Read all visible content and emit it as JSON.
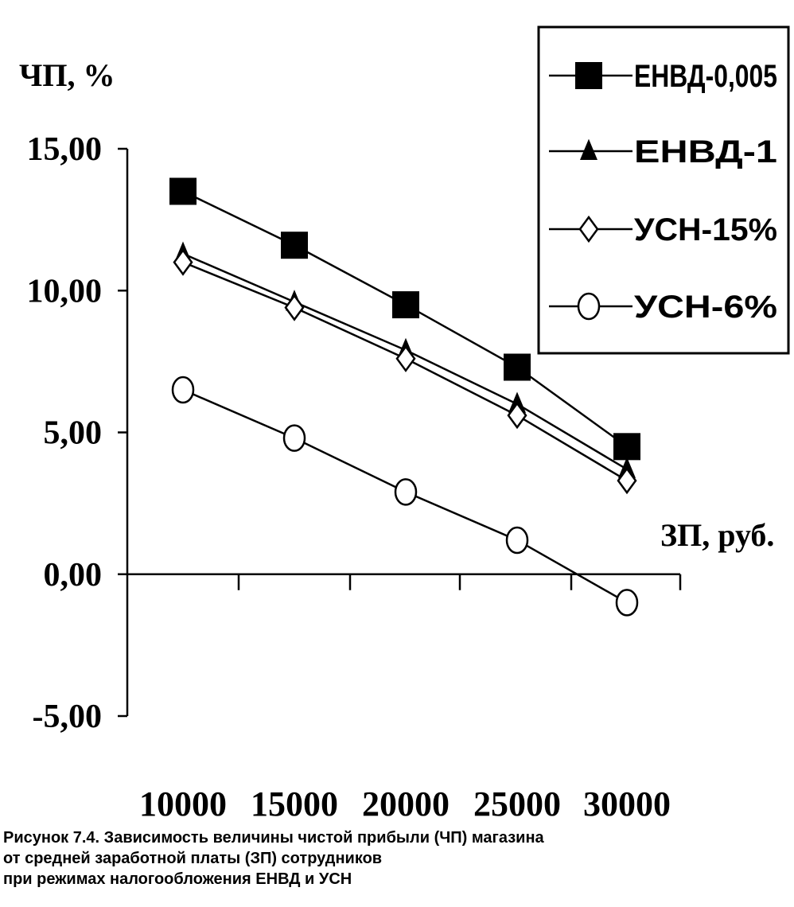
{
  "chart_data": {
    "type": "line",
    "ylabel": "ЧП, %",
    "xlabel": "ЗП, руб.",
    "categories": [
      "10000",
      "15000",
      "20000",
      "25000",
      "30000"
    ],
    "ylim": [
      -5,
      15
    ],
    "y_ticks": [
      "15,00",
      "10,00",
      "5,00",
      "0,00",
      "-5,00"
    ],
    "y_tick_values": [
      15,
      10,
      5,
      0,
      -5
    ],
    "grid": false,
    "legend_position": "top-right",
    "series": [
      {
        "name": "ЕНВД-0,005",
        "marker": "square",
        "values": [
          13.5,
          11.6,
          9.5,
          7.3,
          4.5
        ]
      },
      {
        "name": "ЕНВД-1",
        "marker": "triangle",
        "values": [
          11.3,
          9.6,
          7.9,
          6.0,
          3.7
        ]
      },
      {
        "name": "УСН-15%",
        "marker": "diamond",
        "values": [
          11.0,
          9.4,
          7.6,
          5.6,
          3.3
        ]
      },
      {
        "name": "УСН-6%",
        "marker": "circle",
        "values": [
          6.5,
          4.8,
          2.9,
          1.2,
          -1.0
        ]
      }
    ]
  },
  "caption": {
    "line1": "Рисунок 7.4. Зависимость величины чистой прибыли (ЧП) магазина",
    "line2": "от средней заработной платы (ЗП) сотрудников",
    "line3": "при режимах налогообложения ЕНВД и УСН"
  },
  "colors": {
    "line": "#000000",
    "background": "#ffffff"
  }
}
